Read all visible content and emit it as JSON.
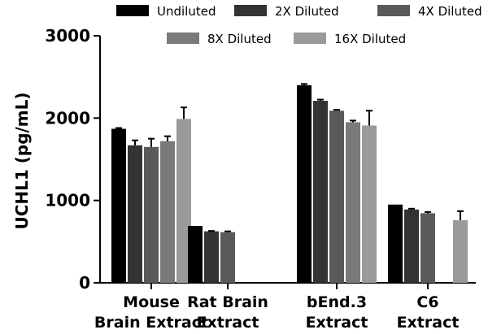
{
  "chart_data": {
    "type": "bar",
    "title": "",
    "xlabel": "",
    "ylabel": "UCHL1 (pg/mL)",
    "ylim": [
      0,
      3000
    ],
    "yticks": [
      "0",
      "1000",
      "2000",
      "3000"
    ],
    "categories": [
      [
        "Mouse",
        "Brain Extract"
      ],
      [
        "Rat Brain",
        "Extract"
      ],
      [
        "bEnd.3",
        "Extract"
      ],
      [
        "C6",
        "Extract"
      ]
    ],
    "series": [
      {
        "name": "Undiluted",
        "color": "#000000",
        "values": [
          1870,
          690,
          2400,
          950
        ],
        "errors": [
          10,
          0,
          15,
          0
        ]
      },
      {
        "name": "2X Diluted",
        "color": "#333333",
        "values": [
          1670,
          625,
          2210,
          890
        ],
        "errors": [
          60,
          5,
          15,
          10
        ]
      },
      {
        "name": "4X Diluted",
        "color": "#5a5a5a",
        "values": [
          1650,
          615,
          2090,
          845
        ],
        "errors": [
          100,
          10,
          10,
          15
        ]
      },
      {
        "name": "8X Diluted",
        "color": "#7a7a7a",
        "values": [
          1720,
          null,
          1950,
          null
        ],
        "errors": [
          60,
          null,
          20,
          null
        ]
      },
      {
        "name": "16X Diluted",
        "color": "#9a9a9a",
        "values": [
          1990,
          null,
          1910,
          760
        ],
        "errors": [
          140,
          null,
          180,
          110
        ]
      }
    ],
    "legend_position": "top",
    "grid": false
  }
}
